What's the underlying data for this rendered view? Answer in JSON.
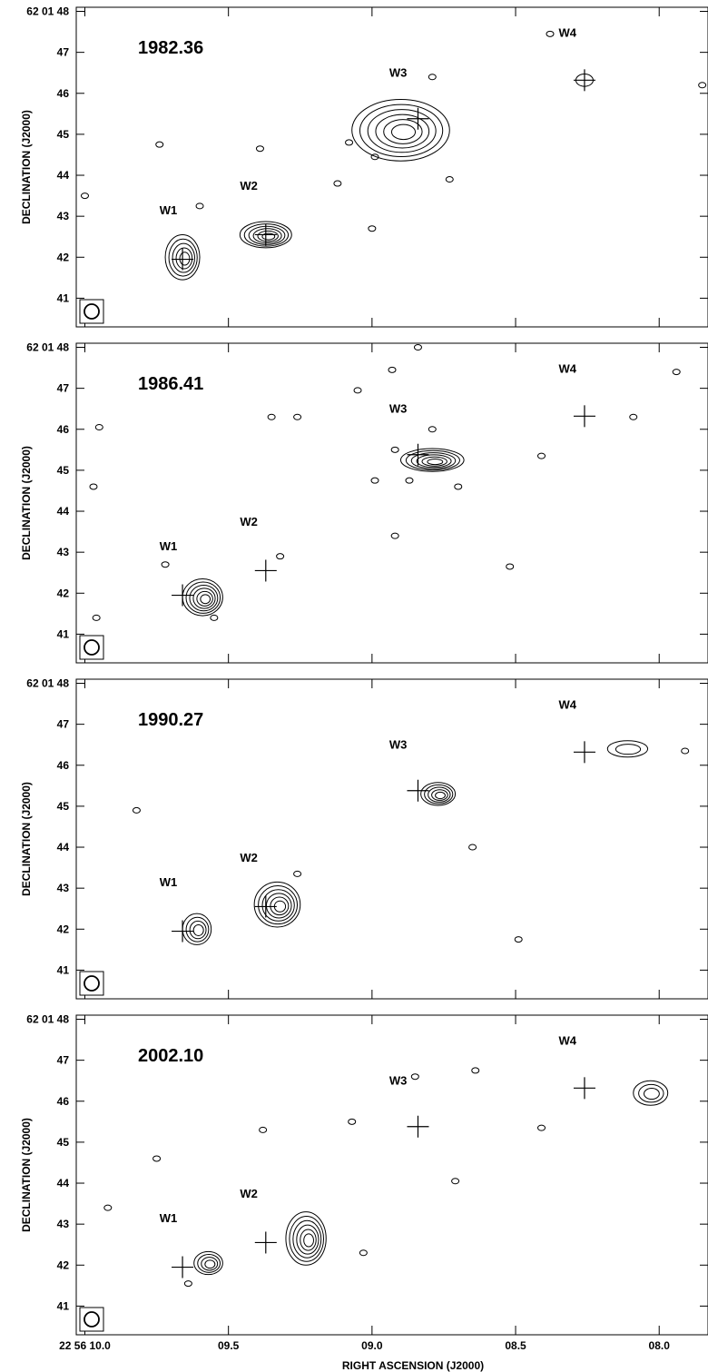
{
  "chart_data": {
    "type": "contour",
    "xlabel": "RIGHT ASCENSION (J2000)",
    "ylabel": "DECLINATION (J2000)",
    "x_unit": "seconds of RA (22 56 xx)",
    "y_unit": "arcsec of Dec (62 01 xx)",
    "xlim": [
      10.03,
      7.83
    ],
    "ylim": [
      40.3,
      48.1
    ],
    "x_ticks": [
      10.0,
      9.5,
      9.0,
      8.5,
      8.0
    ],
    "x_tick_labels": [
      "22 56 10.0",
      "09.5",
      "09.0",
      "08.5",
      "08.0"
    ],
    "y_ticks": [
      41,
      42,
      43,
      44,
      45,
      46,
      47,
      48
    ],
    "y_tick_labels": [
      "41",
      "42",
      "43",
      "44",
      "45",
      "46",
      "47",
      "62 01 48"
    ],
    "reference_positions": [
      {
        "name": "W1",
        "ra": 9.66,
        "dec": 41.95,
        "label_ra": 9.74,
        "label_dec": 43.05
      },
      {
        "name": "W2",
        "ra": 9.37,
        "dec": 42.55,
        "label_ra": 9.46,
        "label_dec": 43.65
      },
      {
        "name": "W3",
        "ra": 8.84,
        "dec": 45.38,
        "label_ra": 8.94,
        "label_dec": 46.4
      },
      {
        "name": "W4",
        "ra": 8.26,
        "dec": 46.32,
        "label_ra": 8.35,
        "label_dec": 47.38
      }
    ],
    "panels": [
      {
        "epoch": "1982.36",
        "components": [
          {
            "near": "W1",
            "ra": 9.66,
            "dec": 42.0,
            "rx": 0.06,
            "ry": 0.55,
            "levels": 5
          },
          {
            "near": "W2",
            "ra": 9.37,
            "dec": 42.55,
            "rx": 0.09,
            "ry": 0.32,
            "levels": 6
          },
          {
            "near": "W3",
            "ra": 8.9,
            "dec": 45.1,
            "rx": 0.17,
            "ry": 0.75,
            "levels": 6
          },
          {
            "near": "W4",
            "ra": 8.26,
            "dec": 46.32,
            "rx": 0.03,
            "ry": 0.15,
            "levels": 1
          }
        ],
        "blobs": [
          {
            "ra": 9.74,
            "dec": 44.75
          },
          {
            "ra": 9.6,
            "dec": 43.25
          },
          {
            "ra": 9.12,
            "dec": 43.8
          },
          {
            "ra": 9.08,
            "dec": 44.8
          },
          {
            "ra": 8.99,
            "dec": 44.45
          },
          {
            "ra": 8.79,
            "dec": 46.4
          },
          {
            "ra": 8.73,
            "dec": 43.9
          },
          {
            "ra": 8.38,
            "dec": 47.45
          },
          {
            "ra": 9.0,
            "dec": 42.7
          },
          {
            "ra": 10.0,
            "dec": 43.5
          },
          {
            "ra": 9.39,
            "dec": 44.65
          },
          {
            "ra": 7.85,
            "dec": 46.2
          }
        ]
      },
      {
        "epoch": "1986.41",
        "components": [
          {
            "near": "W1",
            "ra": 9.59,
            "dec": 41.9,
            "rx": 0.07,
            "ry": 0.45,
            "levels": 6
          },
          {
            "near": "W3",
            "ra": 8.79,
            "dec": 45.25,
            "rx": 0.11,
            "ry": 0.28,
            "levels": 6
          }
        ],
        "blobs": [
          {
            "ra": 9.95,
            "dec": 46.05
          },
          {
            "ra": 9.97,
            "dec": 44.6
          },
          {
            "ra": 9.96,
            "dec": 41.4
          },
          {
            "ra": 9.35,
            "dec": 46.3
          },
          {
            "ra": 9.26,
            "dec": 46.3
          },
          {
            "ra": 9.32,
            "dec": 42.9
          },
          {
            "ra": 9.05,
            "dec": 46.95
          },
          {
            "ra": 8.93,
            "dec": 47.45
          },
          {
            "ra": 8.84,
            "dec": 48.0
          },
          {
            "ra": 8.92,
            "dec": 45.5
          },
          {
            "ra": 8.87,
            "dec": 44.75
          },
          {
            "ra": 8.92,
            "dec": 43.4
          },
          {
            "ra": 8.79,
            "dec": 46.0
          },
          {
            "ra": 8.7,
            "dec": 44.6
          },
          {
            "ra": 8.52,
            "dec": 42.65
          },
          {
            "ra": 8.41,
            "dec": 45.35
          },
          {
            "ra": 8.09,
            "dec": 46.3
          },
          {
            "ra": 7.94,
            "dec": 47.4
          },
          {
            "ra": 8.99,
            "dec": 44.75
          },
          {
            "ra": 9.55,
            "dec": 41.4
          },
          {
            "ra": 9.72,
            "dec": 42.7
          }
        ]
      },
      {
        "epoch": "1990.27",
        "components": [
          {
            "near": "W1",
            "ra": 9.61,
            "dec": 42.0,
            "rx": 0.05,
            "ry": 0.38,
            "levels": 4
          },
          {
            "near": "W2",
            "ra": 9.33,
            "dec": 42.6,
            "rx": 0.08,
            "ry": 0.55,
            "levels": 6
          },
          {
            "near": "W3",
            "ra": 8.77,
            "dec": 45.3,
            "rx": 0.06,
            "ry": 0.28,
            "levels": 5
          },
          {
            "near": "W4",
            "ra": 8.11,
            "dec": 46.4,
            "rx": 0.07,
            "ry": 0.2,
            "levels": 2
          }
        ],
        "blobs": [
          {
            "ra": 9.82,
            "dec": 44.9
          },
          {
            "ra": 9.26,
            "dec": 43.35
          },
          {
            "ra": 8.65,
            "dec": 44.0
          },
          {
            "ra": 8.49,
            "dec": 41.75
          },
          {
            "ra": 7.91,
            "dec": 46.35
          }
        ]
      },
      {
        "epoch": "2002.10",
        "components": [
          {
            "near": "W1",
            "ra": 9.57,
            "dec": 42.05,
            "rx": 0.05,
            "ry": 0.28,
            "levels": 4
          },
          {
            "near": "W2",
            "ra": 9.23,
            "dec": 42.65,
            "rx": 0.07,
            "ry": 0.65,
            "levels": 6
          },
          {
            "near": "W4",
            "ra": 8.03,
            "dec": 46.2,
            "rx": 0.06,
            "ry": 0.3,
            "levels": 3
          }
        ],
        "blobs": [
          {
            "ra": 9.92,
            "dec": 43.4
          },
          {
            "ra": 9.75,
            "dec": 44.6
          },
          {
            "ra": 9.38,
            "dec": 45.3
          },
          {
            "ra": 9.07,
            "dec": 45.5
          },
          {
            "ra": 8.64,
            "dec": 46.75
          },
          {
            "ra": 8.71,
            "dec": 44.05
          },
          {
            "ra": 8.41,
            "dec": 45.35
          },
          {
            "ra": 8.85,
            "dec": 46.6
          },
          {
            "ra": 9.03,
            "dec": 42.3
          },
          {
            "ra": 9.64,
            "dec": 41.55
          }
        ]
      }
    ]
  },
  "figure": {
    "xlabel": "RIGHT ASCENSION (J2000)",
    "ylabel": "DECLINATION (J2000)"
  }
}
